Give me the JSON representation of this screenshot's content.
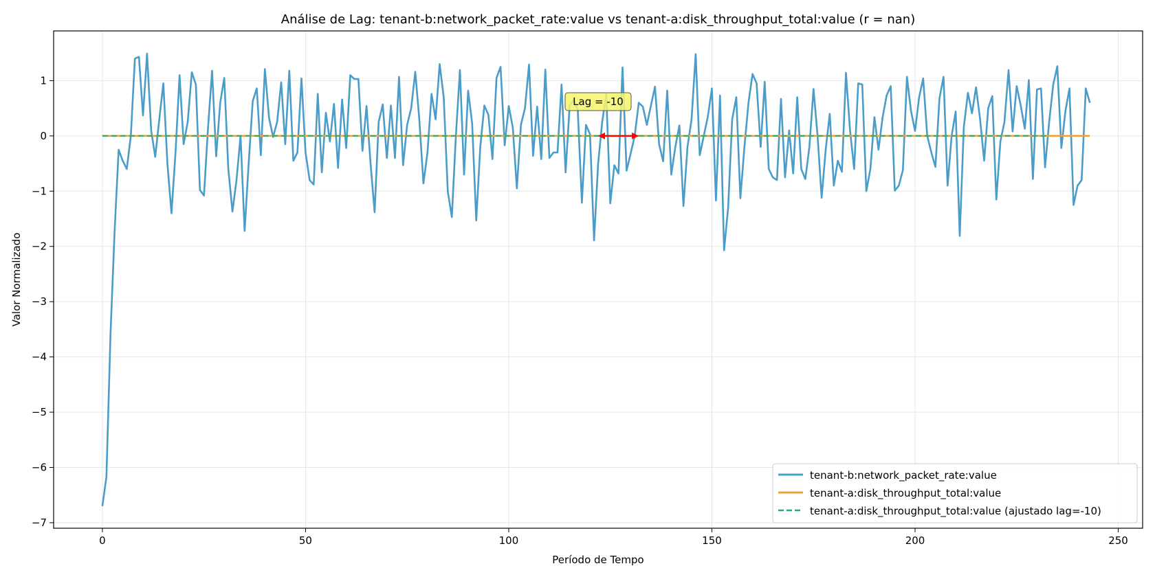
{
  "chart_data": {
    "type": "line",
    "title": "Análise de Lag: tenant-b:network_packet_rate:value vs tenant-a:disk_throughput_total:value (r = nan)",
    "xlabel": "Período de Tempo",
    "ylabel": "Valor Normalizado",
    "xlim": [
      -12,
      256
    ],
    "ylim": [
      -7.1,
      1.9
    ],
    "xticks": [
      0,
      50,
      100,
      150,
      200,
      250
    ],
    "yticks": [
      -7,
      -6,
      -5,
      -4,
      -3,
      -2,
      -1,
      0,
      1
    ],
    "grid": true,
    "legend_position": "lower-right",
    "annotation": {
      "text": "Lag = -10",
      "arrow_from": 122,
      "arrow_to": 132,
      "y": 0,
      "text_x": 122,
      "text_y": 0.62,
      "arrow_color": "#ff0000",
      "box_color": "#f5f56a"
    },
    "series": [
      {
        "name": "tenant-b:network_packet_rate:value",
        "color": "#4a9cc9",
        "style": "solid",
        "x_start": 0,
        "values": [
          -6.7,
          -6.17,
          -3.6,
          -1.72,
          -0.25,
          -0.45,
          -0.6,
          0.0,
          1.4,
          1.43,
          0.37,
          1.49,
          0.1,
          -0.38,
          0.3,
          0.95,
          -0.5,
          -1.4,
          -0.3,
          1.1,
          -0.15,
          0.25,
          1.15,
          0.93,
          -0.98,
          -1.08,
          0.15,
          1.18,
          -0.37,
          0.6,
          1.05,
          -0.6,
          -1.37,
          -0.8,
          0.0,
          -1.72,
          -0.5,
          0.63,
          0.86,
          -0.35,
          1.21,
          0.33,
          -0.02,
          0.25,
          0.97,
          -0.15,
          1.18,
          -0.45,
          -0.3,
          1.04,
          -0.3,
          -0.8,
          -0.88,
          0.76,
          -0.66,
          0.42,
          -0.1,
          0.58,
          -0.58,
          0.66,
          -0.22,
          1.1,
          1.03,
          1.03,
          -0.27,
          0.54,
          -0.5,
          -1.38,
          0.25,
          0.57,
          -0.4,
          0.55,
          -0.4,
          1.07,
          -0.53,
          0.2,
          0.5,
          1.16,
          0.3,
          -0.86,
          -0.3,
          0.76,
          0.3,
          1.3,
          0.7,
          -1.0,
          -1.47,
          0.0,
          1.19,
          -0.7,
          0.82,
          0.22,
          -1.53,
          -0.2,
          0.55,
          0.38,
          -0.42,
          1.05,
          1.25,
          -0.17,
          0.54,
          0.15,
          -0.95,
          0.2,
          0.5,
          1.29,
          -0.36,
          0.53,
          -0.42,
          1.2,
          -0.4,
          -0.3,
          -0.3,
          0.93,
          -0.66,
          0.55,
          0.65,
          0.46,
          -1.21,
          0.2,
          0.03,
          -1.89,
          -0.5,
          0.25,
          0.76,
          -1.22,
          -0.53,
          -0.68,
          1.24,
          -0.63,
          -0.32,
          0.0,
          0.6,
          0.53,
          0.2,
          0.55,
          0.89,
          -0.15,
          -0.46,
          0.82,
          -0.7,
          -0.2,
          0.19,
          -1.27,
          -0.2,
          0.3,
          1.48,
          -0.35,
          0.0,
          0.35,
          0.86,
          -1.17,
          0.73,
          -2.07,
          -1.3,
          0.3,
          0.7,
          -1.13,
          -0.2,
          0.6,
          1.12,
          0.95,
          -0.2,
          0.98,
          -0.6,
          -0.75,
          -0.8,
          0.67,
          -0.75,
          0.1,
          -0.68,
          0.7,
          -0.6,
          -0.78,
          -0.2,
          0.85,
          0.0,
          -1.12,
          -0.25,
          0.4,
          -0.9,
          -0.45,
          -0.65,
          1.14,
          0.1,
          -0.6,
          0.95,
          0.93,
          -1.0,
          -0.6,
          0.34,
          -0.25,
          0.33,
          0.73,
          0.9,
          -0.99,
          -0.9,
          -0.62,
          1.07,
          0.45,
          0.09,
          0.7,
          1.04,
          0.0,
          -0.3,
          -0.56,
          0.68,
          1.07,
          -0.9,
          0.0,
          0.44,
          -1.81,
          0.16,
          0.78,
          0.41,
          0.88,
          0.3,
          -0.45,
          0.5,
          0.72,
          -1.15,
          -0.1,
          0.25,
          1.19,
          0.08,
          0.9,
          0.55,
          0.13,
          1.01,
          -0.78,
          0.84,
          0.86,
          -0.57,
          0.26,
          0.93,
          1.26,
          -0.22,
          0.45,
          0.86,
          -1.25,
          -0.9,
          -0.8,
          0.86,
          0.6
        ]
      },
      {
        "name": "tenant-a:disk_throughput_total:value",
        "color": "#f0a03a",
        "style": "solid",
        "x": [
          0,
          243
        ],
        "values": [
          0,
          0
        ]
      },
      {
        "name": "tenant-a:disk_throughput_total:value (ajustado lag=-10)",
        "color": "#1fae82",
        "style": "dashed",
        "x": [
          0,
          233
        ],
        "values": [
          0,
          0
        ]
      }
    ]
  }
}
